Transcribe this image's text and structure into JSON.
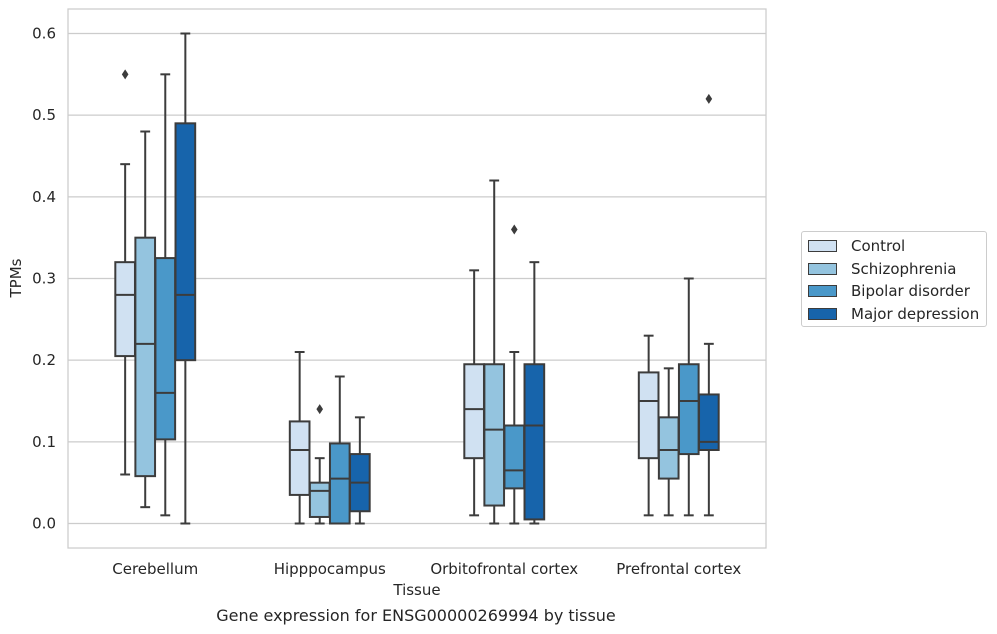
{
  "caption": "Gene expression for ENSG00000269994 by tissue",
  "chart_data": {
    "type": "box",
    "title": "",
    "xlabel": "Tissue",
    "ylabel": "TPMs",
    "ylim": [
      -0.03,
      0.63
    ],
    "yticks": [
      0.0,
      0.1,
      0.2,
      0.3,
      0.4,
      0.5,
      0.6
    ],
    "ytick_labels": [
      "0.0",
      "0.1",
      "0.2",
      "0.3",
      "0.4",
      "0.5",
      "0.6"
    ],
    "grid": "horizontal",
    "legend_position": "right",
    "categories": [
      "Cerebellum",
      "Hipppocampus",
      "Orbitofrontal cortex",
      "Prefrontal cortex"
    ],
    "series": [
      {
        "name": "Control",
        "color": "#d0e1f2",
        "boxes": [
          {
            "whislo": 0.06,
            "q1": 0.205,
            "med": 0.28,
            "q3": 0.32,
            "whishi": 0.44,
            "fliers": [
              0.55
            ]
          },
          {
            "whislo": 0.0,
            "q1": 0.035,
            "med": 0.09,
            "q3": 0.125,
            "whishi": 0.21,
            "fliers": []
          },
          {
            "whislo": 0.01,
            "q1": 0.08,
            "med": 0.14,
            "q3": 0.195,
            "whishi": 0.31,
            "fliers": []
          },
          {
            "whislo": 0.01,
            "q1": 0.08,
            "med": 0.15,
            "q3": 0.185,
            "whishi": 0.23,
            "fliers": []
          }
        ]
      },
      {
        "name": "Schizophrenia",
        "color": "#94c4df",
        "boxes": [
          {
            "whislo": 0.02,
            "q1": 0.058,
            "med": 0.22,
            "q3": 0.35,
            "whishi": 0.48,
            "fliers": []
          },
          {
            "whislo": 0.0,
            "q1": 0.008,
            "med": 0.04,
            "q3": 0.05,
            "whishi": 0.08,
            "fliers": [
              0.14
            ]
          },
          {
            "whislo": 0.0,
            "q1": 0.022,
            "med": 0.115,
            "q3": 0.195,
            "whishi": 0.42,
            "fliers": []
          },
          {
            "whislo": 0.01,
            "q1": 0.055,
            "med": 0.09,
            "q3": 0.13,
            "whishi": 0.19,
            "fliers": []
          }
        ]
      },
      {
        "name": "Bipolar disorder",
        "color": "#4a98c9",
        "boxes": [
          {
            "whislo": 0.01,
            "q1": 0.103,
            "med": 0.16,
            "q3": 0.325,
            "whishi": 0.55,
            "fliers": []
          },
          {
            "whislo": 0.0,
            "q1": 0.0,
            "med": 0.055,
            "q3": 0.098,
            "whishi": 0.18,
            "fliers": []
          },
          {
            "whislo": 0.0,
            "q1": 0.043,
            "med": 0.065,
            "q3": 0.12,
            "whishi": 0.21,
            "fliers": [
              0.36
            ]
          },
          {
            "whislo": 0.01,
            "q1": 0.085,
            "med": 0.15,
            "q3": 0.195,
            "whishi": 0.3,
            "fliers": []
          }
        ]
      },
      {
        "name": "Major depression",
        "color": "#1764ab",
        "boxes": [
          {
            "whislo": 0.0,
            "q1": 0.2,
            "med": 0.28,
            "q3": 0.49,
            "whishi": 0.6,
            "fliers": []
          },
          {
            "whislo": 0.0,
            "q1": 0.015,
            "med": 0.05,
            "q3": 0.085,
            "whishi": 0.13,
            "fliers": []
          },
          {
            "whislo": 0.0,
            "q1": 0.005,
            "med": 0.12,
            "q3": 0.195,
            "whishi": 0.32,
            "fliers": []
          },
          {
            "whislo": 0.01,
            "q1": 0.09,
            "med": 0.1,
            "q3": 0.158,
            "whishi": 0.22,
            "fliers": [
              0.52
            ]
          }
        ]
      }
    ]
  }
}
